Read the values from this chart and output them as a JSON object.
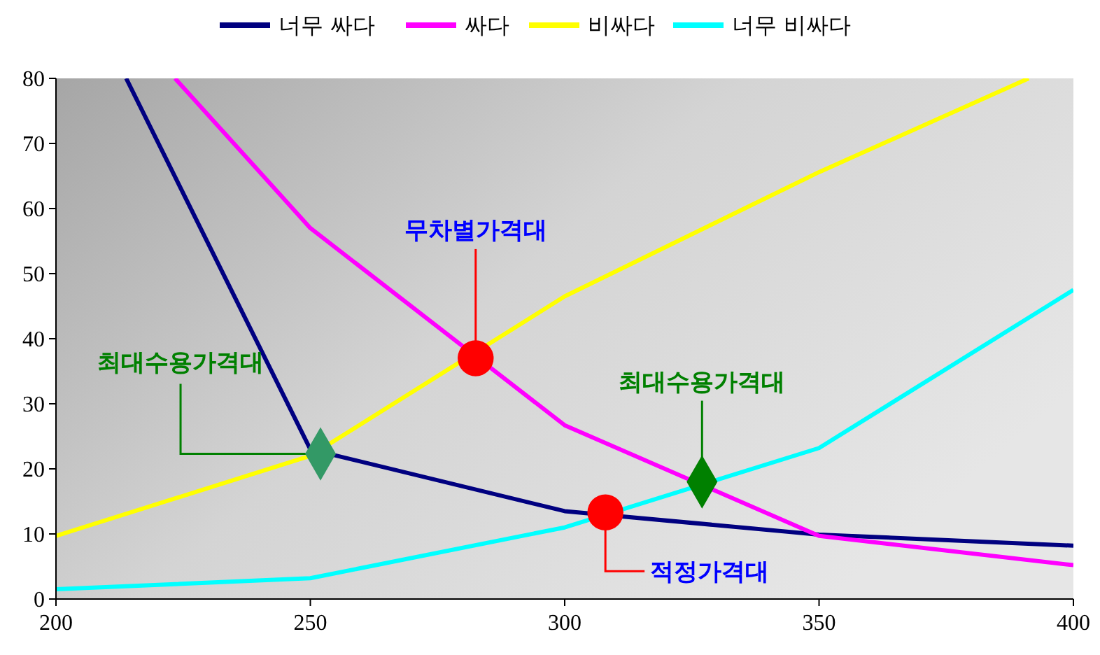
{
  "chart_data": {
    "type": "line",
    "xlim": [
      200,
      400
    ],
    "xticks": [
      200,
      250,
      300,
      350,
      400
    ],
    "ylim": [
      0,
      80
    ],
    "yticks": [
      0,
      10,
      20,
      30,
      40,
      50,
      60,
      70,
      80
    ],
    "grid": false,
    "legend": "top",
    "marker": "none",
    "line_style": "solid",
    "series": [
      {
        "name": "너무 싸다",
        "color": "#000080",
        "x": [
          213.8,
          250,
          300,
          350,
          400
        ],
        "values": [
          80,
          23,
          13.5,
          9.9,
          8.2
        ]
      },
      {
        "name": "싸다",
        "color": "#ff00ff",
        "x": [
          223.4,
          250,
          300,
          350,
          400
        ],
        "values": [
          80,
          57,
          26.7,
          9.7,
          5.2
        ]
      },
      {
        "name": "비싸다",
        "color": "#ffff00",
        "x": [
          200,
          250,
          300,
          350,
          391.2
        ],
        "values": [
          9.7,
          22,
          46.5,
          65.6,
          80
        ]
      },
      {
        "name": "너무 비싸다",
        "color": "#00ffff",
        "x": [
          200,
          250,
          300,
          350,
          400
        ],
        "values": [
          1.5,
          3.2,
          11,
          23.2,
          47.5
        ]
      },
      {
        "type": "scatter",
        "marker": "circle",
        "color": "#ff0000",
        "x": [
          282.5,
          308
        ],
        "values": [
          37,
          13.3
        ]
      },
      {
        "type": "scatter",
        "marker": "diamond",
        "colors": [
          "#339966",
          "#008000"
        ],
        "x": [
          252,
          327
        ],
        "values": [
          22.3,
          18
        ]
      }
    ],
    "annotations": [
      {
        "text": "무차별가격대",
        "x": 282.5,
        "y": 37
      },
      {
        "text": "적정가격대",
        "x": 308,
        "y": 13.3
      },
      {
        "text": "최대수용가격대",
        "x": 252,
        "y": 22.3
      },
      {
        "text": "최대수용가격대",
        "x": 327,
        "y": 18
      }
    ]
  }
}
